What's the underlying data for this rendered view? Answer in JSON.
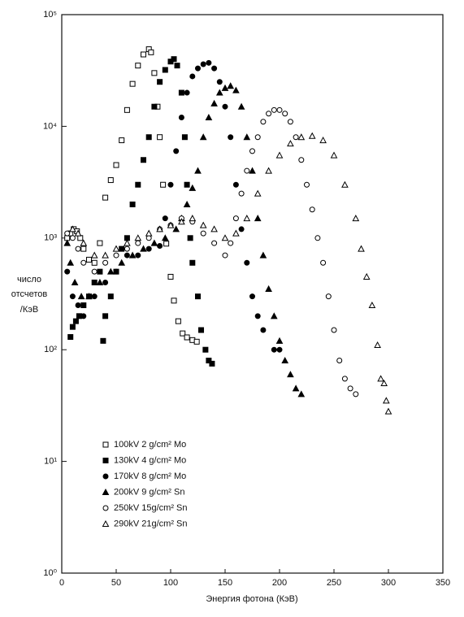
{
  "chart_data": {
    "type": "scatter",
    "x_label": "Энергия фотона (КэВ)",
    "y_label": [
      "число",
      "отсчетов",
      "/КэВ"
    ],
    "xlim": [
      0,
      350
    ],
    "xticks": [
      0,
      50,
      100,
      150,
      200,
      250,
      300,
      350
    ],
    "ylim": [
      1,
      100000
    ],
    "yticks": [
      {
        "value": 1,
        "label": "10⁰"
      },
      {
        "value": 10,
        "label": "10¹"
      },
      {
        "value": 100,
        "label": "10²"
      },
      {
        "value": 1000,
        "label": "10³"
      },
      {
        "value": 10000,
        "label": "10⁴"
      },
      {
        "value": 100000,
        "label": "10⁵"
      }
    ],
    "log_y": true,
    "grid": false,
    "legend": "lower left",
    "series": [
      {
        "name": "100kV 2 g/cm² Mo",
        "color": "#000000",
        "marker": "open-square",
        "x": [
          5,
          8,
          11,
          14,
          17,
          20,
          25,
          30,
          35,
          40,
          45,
          50,
          55,
          60,
          65,
          70,
          75,
          80,
          82,
          85,
          88,
          90,
          93,
          96,
          100,
          103,
          107,
          111,
          115,
          120,
          124
        ],
        "values": [
          1000,
          1100,
          1200,
          1150,
          1000,
          800,
          640,
          600,
          900,
          2300,
          3300,
          4500,
          7500,
          14000,
          24000,
          35000,
          44000,
          49000,
          46000,
          30000,
          15000,
          8000,
          3000,
          890,
          450,
          275,
          180,
          140,
          129,
          122,
          118
        ]
      },
      {
        "name": "130kV 4 g/cm² Mo",
        "color": "#000000",
        "marker": "filled-square",
        "x": [
          8,
          10,
          13,
          16,
          20,
          25,
          30,
          35,
          38,
          40,
          45,
          50,
          55,
          60,
          65,
          70,
          75,
          80,
          85,
          90,
          95,
          100,
          103,
          106,
          110,
          113,
          115,
          118,
          120,
          125,
          128,
          132,
          135,
          138
        ],
        "values": [
          130,
          160,
          180,
          200,
          250,
          300,
          400,
          500,
          120,
          200,
          300,
          500,
          800,
          1000,
          2000,
          3000,
          5000,
          8000,
          15000,
          25000,
          32000,
          38000,
          40000,
          35000,
          20000,
          8000,
          3000,
          1000,
          600,
          300,
          150,
          100,
          80,
          75
        ]
      },
      {
        "name": "170kV 8 g/cm² Mo",
        "color": "#000000",
        "marker": "filled-circle",
        "x": [
          5,
          10,
          15,
          20,
          30,
          40,
          50,
          60,
          70,
          80,
          90,
          95,
          100,
          105,
          110,
          115,
          120,
          125,
          130,
          135,
          140,
          145,
          150,
          155,
          160,
          165,
          170,
          175,
          180,
          185,
          195,
          200
        ],
        "values": [
          500,
          300,
          250,
          200,
          300,
          400,
          500,
          700,
          700,
          800,
          850,
          1500,
          3000,
          6000,
          12000,
          20000,
          28000,
          33000,
          36000,
          37000,
          33000,
          25000,
          15000,
          8000,
          3000,
          1200,
          600,
          300,
          200,
          150,
          100,
          100
        ]
      },
      {
        "name": "200kV 9 g/cm² Sn",
        "color": "#000000",
        "marker": "filled-triangle",
        "x": [
          5,
          8,
          12,
          18,
          25,
          35,
          45,
          55,
          65,
          75,
          85,
          95,
          105,
          110,
          115,
          120,
          125,
          130,
          135,
          140,
          145,
          150,
          155,
          160,
          165,
          170,
          175,
          180,
          185,
          190,
          195,
          200,
          205,
          210,
          215,
          220
        ],
        "values": [
          900,
          600,
          400,
          300,
          300,
          400,
          500,
          600,
          700,
          800,
          900,
          1000,
          1200,
          1500,
          2000,
          2800,
          4000,
          8000,
          12000,
          16000,
          20000,
          22000,
          23000,
          21000,
          15000,
          8000,
          4000,
          1500,
          700,
          350,
          200,
          120,
          80,
          60,
          45,
          40
        ]
      },
      {
        "name": "250kV 15g/cm² Sn",
        "color": "#000000",
        "marker": "open-circle",
        "x": [
          5,
          10,
          15,
          20,
          30,
          40,
          50,
          60,
          70,
          80,
          90,
          100,
          110,
          120,
          130,
          140,
          150,
          155,
          160,
          165,
          170,
          175,
          180,
          185,
          190,
          195,
          200,
          205,
          210,
          215,
          220,
          225,
          230,
          235,
          240,
          245,
          250,
          255,
          260,
          265,
          270
        ],
        "values": [
          1100,
          1000,
          800,
          600,
          500,
          600,
          700,
          800,
          900,
          1000,
          1200,
          1300,
          1500,
          1400,
          1100,
          900,
          700,
          900,
          1500,
          2500,
          4000,
          6000,
          8000,
          11000,
          13000,
          14000,
          14000,
          13000,
          11000,
          8000,
          5000,
          3000,
          1800,
          1000,
          600,
          300,
          150,
          80,
          55,
          45,
          40
        ]
      },
      {
        "name": "290kV 21g/cm² Sn",
        "color": "#000000",
        "marker": "open-triangle",
        "x": [
          10,
          15,
          20,
          30,
          40,
          50,
          60,
          70,
          80,
          90,
          100,
          110,
          120,
          130,
          140,
          150,
          160,
          170,
          180,
          190,
          200,
          210,
          220,
          230,
          240,
          250,
          260,
          270,
          275,
          280,
          285,
          290,
          293,
          296,
          298,
          300
        ],
        "values": [
          1200,
          1100,
          900,
          700,
          700,
          800,
          900,
          1000,
          1100,
          1200,
          1300,
          1400,
          1500,
          1300,
          1200,
          1000,
          1100,
          1500,
          2500,
          4000,
          5500,
          7000,
          8000,
          8200,
          7500,
          5500,
          3000,
          1500,
          800,
          450,
          250,
          110,
          55,
          50,
          35,
          28
        ]
      }
    ]
  }
}
